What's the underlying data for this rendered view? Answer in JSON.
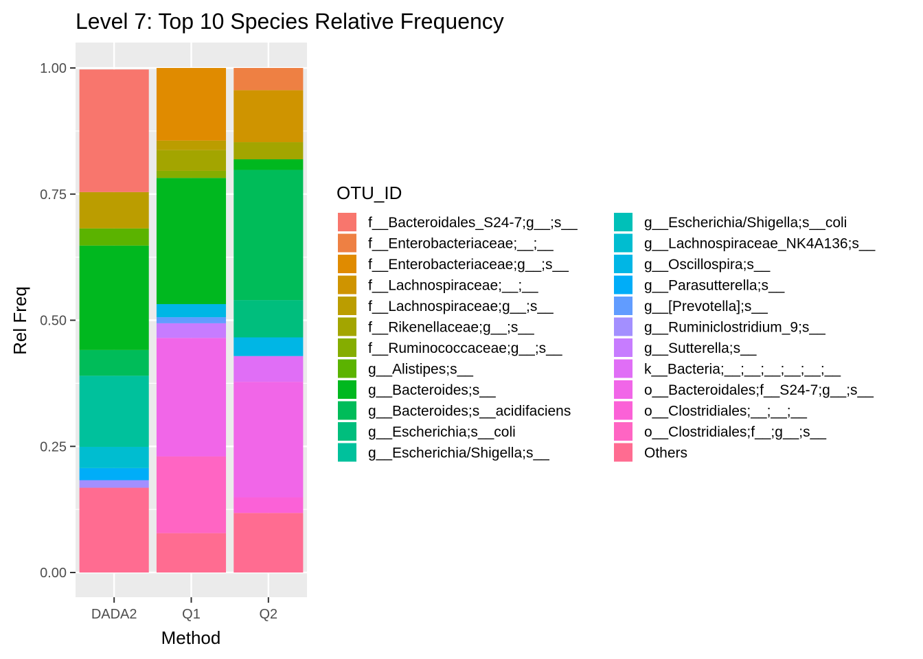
{
  "chart_data": {
    "type": "bar",
    "stacked": true,
    "title": "Level 7: Top 10 Species Relative Frequency",
    "xlabel": "Method",
    "ylabel": "Rel Freq",
    "ylim": [
      0,
      1
    ],
    "y_ticks": [
      "0.00",
      "0.25",
      "0.50",
      "0.75",
      "1.00"
    ],
    "y_tick_values": [
      0,
      0.25,
      0.5,
      0.75,
      1.0
    ],
    "categories": [
      "DADA2",
      "Q1",
      "Q2"
    ],
    "grid": true,
    "legend_position": "right",
    "legend_title": "OTU_ID",
    "series": [
      {
        "name": "f__Bacteroidales_S24-7;g__;s__",
        "color": "#F8766D",
        "values": [
          0.243,
          0,
          0
        ]
      },
      {
        "name": "f__Enterobacteriaceae;__;__",
        "color": "#EE8043",
        "values": [
          0,
          0,
          0.044
        ]
      },
      {
        "name": "f__Enterobacteriaceae;g__;s__",
        "color": "#E08B00",
        "values": [
          0,
          0.144,
          0
        ]
      },
      {
        "name": "f__Lachnospiraceae;__;__",
        "color": "#CF9400",
        "values": [
          0,
          0,
          0.103
        ]
      },
      {
        "name": "f__Lachnospiraceae;g__;s__",
        "color": "#BB9D00",
        "values": [
          0.072,
          0.019,
          0
        ]
      },
      {
        "name": "f__Rikenellaceae;g__;s__",
        "color": "#A3A500",
        "values": [
          0,
          0.041,
          0.034
        ]
      },
      {
        "name": "f__Ruminococcaceae;g__;s__",
        "color": "#85AD00",
        "values": [
          0,
          0.014,
          0
        ]
      },
      {
        "name": "g__Alistipes;s__",
        "color": "#5BB300",
        "values": [
          0.034,
          0,
          0
        ]
      },
      {
        "name": "g__Bacteroides;s__",
        "color": "#00B81F",
        "values": [
          0.207,
          0.25,
          0.021
        ]
      },
      {
        "name": "g__Bacteroides;s__acidifaciens",
        "color": "#00BC59",
        "values": [
          0.051,
          0,
          0.258
        ]
      },
      {
        "name": "g__Escherichia;s__coli",
        "color": "#00BE7D",
        "values": [
          0,
          0,
          0.074
        ]
      },
      {
        "name": "g__Escherichia/Shigella;s__",
        "color": "#00C19C",
        "values": [
          0.141,
          0,
          0
        ]
      },
      {
        "name": "g__Escherichia/Shigella;s__coli",
        "color": "#00C0B8",
        "values": [
          0,
          0,
          0
        ]
      },
      {
        "name": "g__Lachnospiraceae_NK4A136;s__",
        "color": "#00BDD0",
        "values": [
          0.042,
          0,
          0
        ]
      },
      {
        "name": "g__Oscillospira;s__",
        "color": "#00B6E5",
        "values": [
          0,
          0.026,
          0.037
        ]
      },
      {
        "name": "g__Parasutterella;s__",
        "color": "#00ADF8",
        "values": [
          0.024,
          0,
          0
        ]
      },
      {
        "name": "g__[Prevotella];s__",
        "color": "#619CFF",
        "values": [
          0,
          0.012,
          0
        ]
      },
      {
        "name": "g__Ruminiclostridium_9;s__",
        "color": "#A38FFF",
        "values": [
          0.015,
          0,
          0
        ]
      },
      {
        "name": "g__Sutterella;s__",
        "color": "#C77CFF",
        "values": [
          0,
          0.029,
          0
        ]
      },
      {
        "name": "k__Bacteria;__;__;__;__;__;__",
        "color": "#E06EF6",
        "values": [
          0,
          0,
          0.051
        ]
      },
      {
        "name": "o__Bacteroidales;f__S24-7;g__;s__",
        "color": "#F166E8",
        "values": [
          0,
          0.235,
          0.229
        ]
      },
      {
        "name": "o__Clostridiales;__;__;__",
        "color": "#FB61D7",
        "values": [
          0,
          0,
          0.031
        ]
      },
      {
        "name": "o__Clostridiales;f__;g__;s__",
        "color": "#FF65C3",
        "values": [
          0,
          0.152,
          0
        ]
      },
      {
        "name": "Others",
        "color": "#FF6C91",
        "values": [
          0.168,
          0.078,
          0.118
        ]
      }
    ]
  }
}
